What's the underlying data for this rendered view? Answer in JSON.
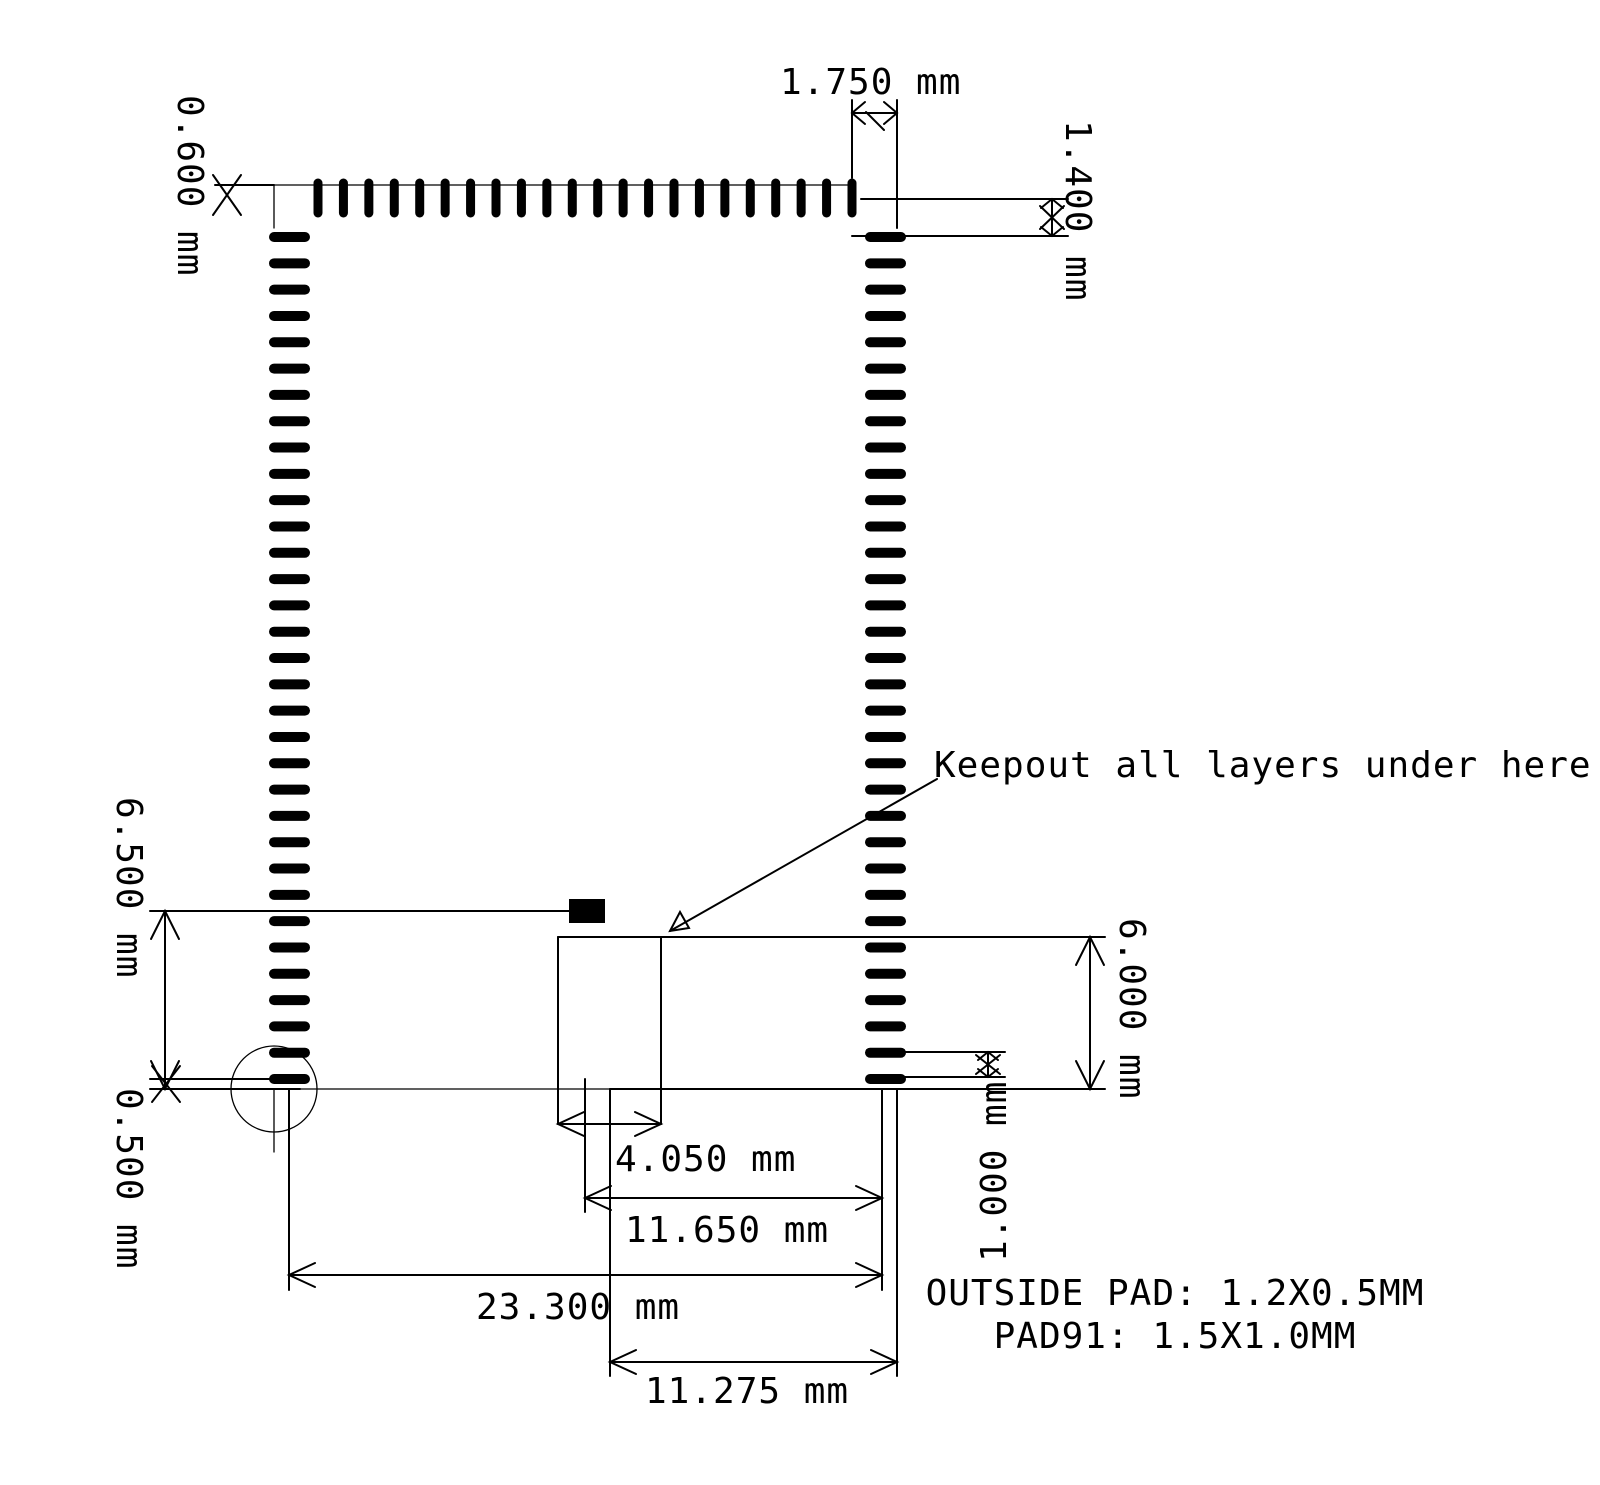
{
  "pads": {
    "top_row_count": 22,
    "left_column_count": 33,
    "right_column_count": 33
  },
  "dimensions": {
    "top_pad_pitch_gap": "1.750 mm",
    "top_left_offset": "0.600 mm",
    "top_right_offset": "1.400 mm",
    "pad91_height": "6.500 mm",
    "bottom_left_offset": "0.500 mm",
    "keepout_height": "6.000 mm",
    "bottom_right_offset": "1.000 mm",
    "keepout_width": "4.050 mm",
    "center_to_right": "11.650 mm",
    "pin1_to_right": "23.300 mm",
    "mid_to_edge": "11.275 mm"
  },
  "annotations": {
    "keepout": "Keepout all layers under here",
    "outside_pad": "OUTSIDE PAD: 1.2X0.5MM",
    "pad91": "PAD91: 1.5X1.0MM"
  }
}
